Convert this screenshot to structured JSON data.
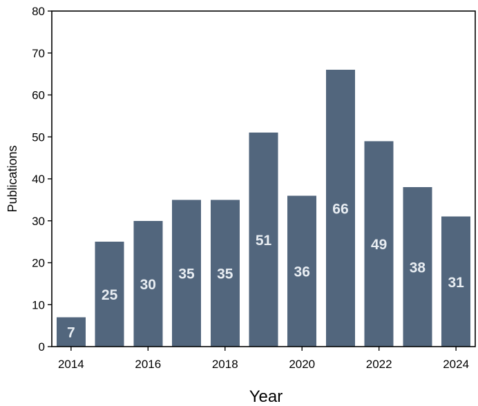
{
  "chart_data": {
    "type": "bar",
    "categories": [
      "2014",
      "2015",
      "2016",
      "2017",
      "2018",
      "2019",
      "2020",
      "2021",
      "2022",
      "2023",
      "2024"
    ],
    "values": [
      7,
      25,
      30,
      35,
      35,
      51,
      36,
      66,
      49,
      38,
      31
    ],
    "data_labels": [
      "7",
      "25",
      "30",
      "35",
      "35",
      "51",
      "36",
      "66",
      "49",
      "38",
      "31"
    ],
    "title": "",
    "xlabel": "Year",
    "ylabel": "Publications",
    "ylim": [
      0,
      80
    ],
    "y_ticks": [
      0,
      10,
      20,
      30,
      40,
      50,
      60,
      70,
      80
    ],
    "y_tick_labels": [
      "0",
      "10",
      "20",
      "30",
      "40",
      "50",
      "60",
      "70",
      "80"
    ],
    "x_ticks": [
      2014,
      2016,
      2018,
      2020,
      2022,
      2024
    ],
    "x_tick_labels": [
      "2014",
      "2016",
      "2018",
      "2020",
      "2022",
      "2024"
    ],
    "grid": false,
    "legend": "none",
    "colors": {
      "bar": "#52667d",
      "label": "#e8edf2",
      "axis": "#000000"
    }
  }
}
